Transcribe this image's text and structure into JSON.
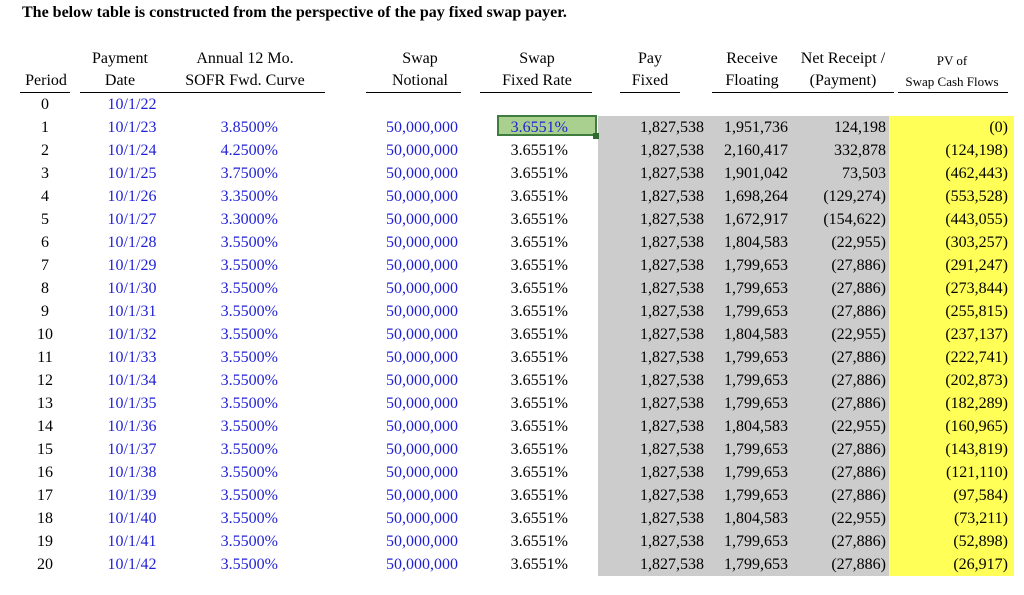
{
  "title": "The below table is constructed from the perspective of the pay fixed swap payer.",
  "headers": {
    "period": "Period",
    "payment_date_1": "Payment",
    "payment_date_2": "Date",
    "sofr_1": "Annual 12 Mo.",
    "sofr_2": "SOFR Fwd. Curve",
    "notional_1": "Swap",
    "notional_2": "Notional",
    "fixed_rate_1": "Swap",
    "fixed_rate_2": "Fixed Rate",
    "pay_fixed_1": "Pay",
    "pay_fixed_2": "Fixed",
    "receive_floating_1": "Receive",
    "receive_floating_2": "Floating",
    "net_receipt_1": "Net Receipt /",
    "net_receipt_2": "(Payment)",
    "pv_1": "PV of",
    "pv_2": "Swap Cash Flows"
  },
  "colors": {
    "blue_input": "#1f1fd6",
    "gray_band": "#cccccc",
    "yellow_band": "#ffff57",
    "selected_cell": "#a9d08e"
  },
  "rows": [
    {
      "period": "0",
      "date": "10/1/22",
      "sofr": "",
      "notional": "",
      "fixed_rate": "",
      "pay_fixed": "",
      "receive_floating": "",
      "net": "",
      "pv": ""
    },
    {
      "period": "1",
      "date": "10/1/23",
      "sofr": "3.8500%",
      "notional": "50,000,000",
      "fixed_rate": "3.6551%",
      "pay_fixed": "1,827,538",
      "receive_floating": "1,951,736",
      "net": "124,198",
      "pv": "(0)"
    },
    {
      "period": "2",
      "date": "10/1/24",
      "sofr": "4.2500%",
      "notional": "50,000,000",
      "fixed_rate": "3.6551%",
      "pay_fixed": "1,827,538",
      "receive_floating": "2,160,417",
      "net": "332,878",
      "pv": "(124,198)"
    },
    {
      "period": "3",
      "date": "10/1/25",
      "sofr": "3.7500%",
      "notional": "50,000,000",
      "fixed_rate": "3.6551%",
      "pay_fixed": "1,827,538",
      "receive_floating": "1,901,042",
      "net": "73,503",
      "pv": "(462,443)"
    },
    {
      "period": "4",
      "date": "10/1/26",
      "sofr": "3.3500%",
      "notional": "50,000,000",
      "fixed_rate": "3.6551%",
      "pay_fixed": "1,827,538",
      "receive_floating": "1,698,264",
      "net": "(129,274)",
      "pv": "(553,528)"
    },
    {
      "period": "5",
      "date": "10/1/27",
      "sofr": "3.3000%",
      "notional": "50,000,000",
      "fixed_rate": "3.6551%",
      "pay_fixed": "1,827,538",
      "receive_floating": "1,672,917",
      "net": "(154,622)",
      "pv": "(443,055)"
    },
    {
      "period": "6",
      "date": "10/1/28",
      "sofr": "3.5500%",
      "notional": "50,000,000",
      "fixed_rate": "3.6551%",
      "pay_fixed": "1,827,538",
      "receive_floating": "1,804,583",
      "net": "(22,955)",
      "pv": "(303,257)"
    },
    {
      "period": "7",
      "date": "10/1/29",
      "sofr": "3.5500%",
      "notional": "50,000,000",
      "fixed_rate": "3.6551%",
      "pay_fixed": "1,827,538",
      "receive_floating": "1,799,653",
      "net": "(27,886)",
      "pv": "(291,247)"
    },
    {
      "period": "8",
      "date": "10/1/30",
      "sofr": "3.5500%",
      "notional": "50,000,000",
      "fixed_rate": "3.6551%",
      "pay_fixed": "1,827,538",
      "receive_floating": "1,799,653",
      "net": "(27,886)",
      "pv": "(273,844)"
    },
    {
      "period": "9",
      "date": "10/1/31",
      "sofr": "3.5500%",
      "notional": "50,000,000",
      "fixed_rate": "3.6551%",
      "pay_fixed": "1,827,538",
      "receive_floating": "1,799,653",
      "net": "(27,886)",
      "pv": "(255,815)"
    },
    {
      "period": "10",
      "date": "10/1/32",
      "sofr": "3.5500%",
      "notional": "50,000,000",
      "fixed_rate": "3.6551%",
      "pay_fixed": "1,827,538",
      "receive_floating": "1,804,583",
      "net": "(22,955)",
      "pv": "(237,137)"
    },
    {
      "period": "11",
      "date": "10/1/33",
      "sofr": "3.5500%",
      "notional": "50,000,000",
      "fixed_rate": "3.6551%",
      "pay_fixed": "1,827,538",
      "receive_floating": "1,799,653",
      "net": "(27,886)",
      "pv": "(222,741)"
    },
    {
      "period": "12",
      "date": "10/1/34",
      "sofr": "3.5500%",
      "notional": "50,000,000",
      "fixed_rate": "3.6551%",
      "pay_fixed": "1,827,538",
      "receive_floating": "1,799,653",
      "net": "(27,886)",
      "pv": "(202,873)"
    },
    {
      "period": "13",
      "date": "10/1/35",
      "sofr": "3.5500%",
      "notional": "50,000,000",
      "fixed_rate": "3.6551%",
      "pay_fixed": "1,827,538",
      "receive_floating": "1,799,653",
      "net": "(27,886)",
      "pv": "(182,289)"
    },
    {
      "period": "14",
      "date": "10/1/36",
      "sofr": "3.5500%",
      "notional": "50,000,000",
      "fixed_rate": "3.6551%",
      "pay_fixed": "1,827,538",
      "receive_floating": "1,804,583",
      "net": "(22,955)",
      "pv": "(160,965)"
    },
    {
      "period": "15",
      "date": "10/1/37",
      "sofr": "3.5500%",
      "notional": "50,000,000",
      "fixed_rate": "3.6551%",
      "pay_fixed": "1,827,538",
      "receive_floating": "1,799,653",
      "net": "(27,886)",
      "pv": "(143,819)"
    },
    {
      "period": "16",
      "date": "10/1/38",
      "sofr": "3.5500%",
      "notional": "50,000,000",
      "fixed_rate": "3.6551%",
      "pay_fixed": "1,827,538",
      "receive_floating": "1,799,653",
      "net": "(27,886)",
      "pv": "(121,110)"
    },
    {
      "period": "17",
      "date": "10/1/39",
      "sofr": "3.5500%",
      "notional": "50,000,000",
      "fixed_rate": "3.6551%",
      "pay_fixed": "1,827,538",
      "receive_floating": "1,799,653",
      "net": "(27,886)",
      "pv": "(97,584)"
    },
    {
      "period": "18",
      "date": "10/1/40",
      "sofr": "3.5500%",
      "notional": "50,000,000",
      "fixed_rate": "3.6551%",
      "pay_fixed": "1,827,538",
      "receive_floating": "1,804,583",
      "net": "(22,955)",
      "pv": "(73,211)"
    },
    {
      "period": "19",
      "date": "10/1/41",
      "sofr": "3.5500%",
      "notional": "50,000,000",
      "fixed_rate": "3.6551%",
      "pay_fixed": "1,827,538",
      "receive_floating": "1,799,653",
      "net": "(27,886)",
      "pv": "(52,898)"
    },
    {
      "period": "20",
      "date": "10/1/42",
      "sofr": "3.5500%",
      "notional": "50,000,000",
      "fixed_rate": "3.6551%",
      "pay_fixed": "1,827,538",
      "receive_floating": "1,799,653",
      "net": "(27,886)",
      "pv": "(26,917)"
    }
  ]
}
